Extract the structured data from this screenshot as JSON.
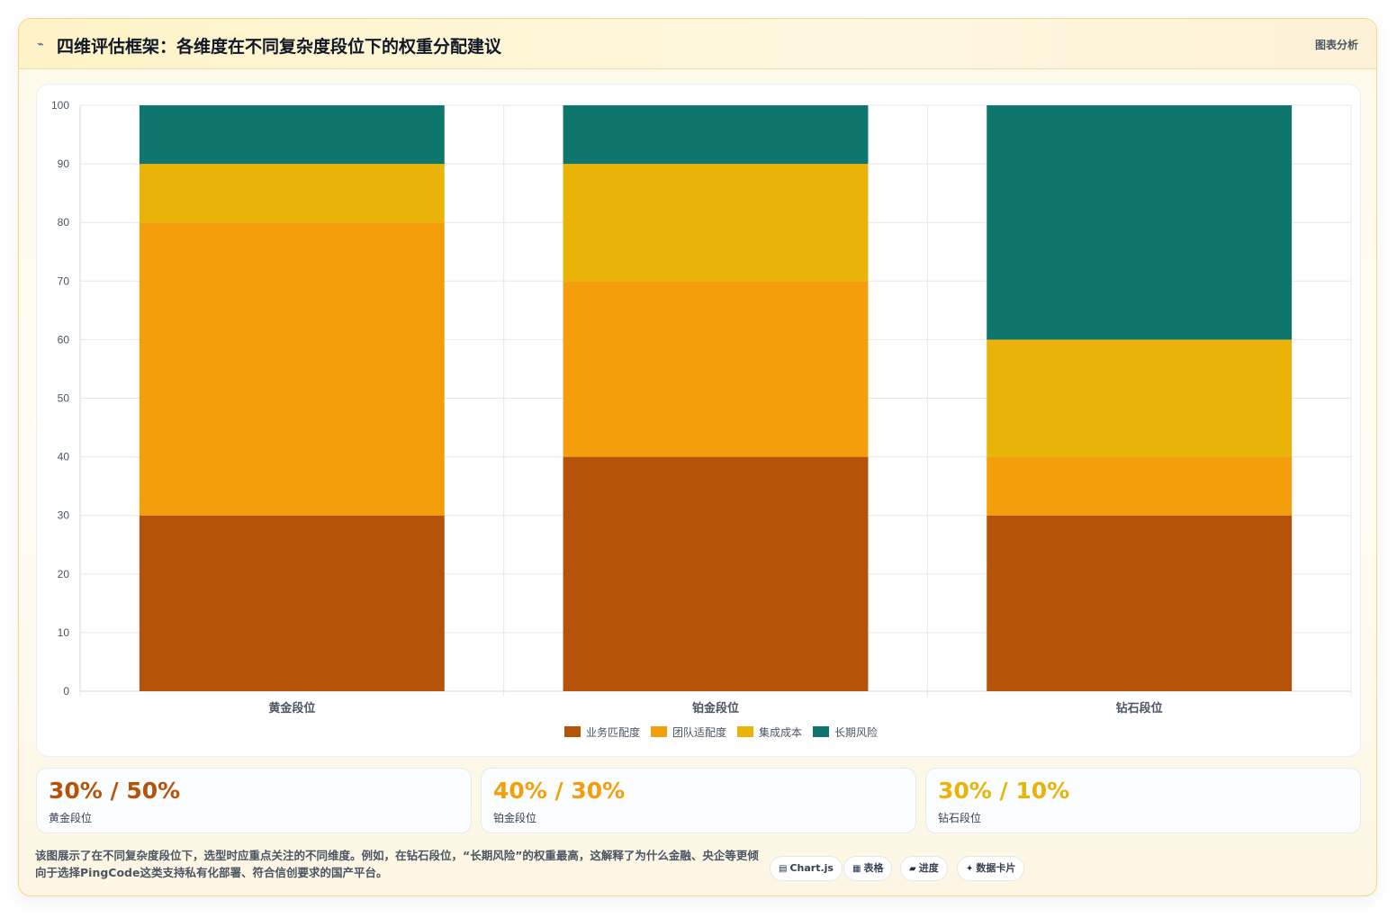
{
  "header": {
    "icon": "line-chart-icon",
    "title": "四维评估框架：各维度在不同复杂度段位下的权重分配建议",
    "badge": "图表分析"
  },
  "chart_data": {
    "type": "bar",
    "stacked": true,
    "categories": [
      "黄金段位",
      "铂金段位",
      "钻石段位"
    ],
    "series": [
      {
        "name": "业务匹配度",
        "values": [
          30,
          40,
          30
        ],
        "color": "#b45309"
      },
      {
        "name": "团队适配度",
        "values": [
          50,
          30,
          10
        ],
        "color": "#f59e0b"
      },
      {
        "name": "集成成本",
        "values": [
          10,
          20,
          20
        ],
        "color": "#eab308"
      },
      {
        "name": "长期风险",
        "values": [
          10,
          10,
          40
        ],
        "color": "#0f766e"
      }
    ],
    "ylim": [
      0,
      100
    ],
    "yticks": [
      0,
      10,
      20,
      30,
      40,
      50,
      60,
      70,
      80,
      90,
      100
    ],
    "grid": true,
    "legend": "bottom"
  },
  "kpis": [
    {
      "value": "30% / 50%",
      "label": "黄金段位",
      "color": "#b45309"
    },
    {
      "value": "40% / 30%",
      "label": "铂金段位",
      "color": "#f59e0b"
    },
    {
      "value": "30% / 10%",
      "label": "钻石段位",
      "color": "#eab308"
    }
  ],
  "footer": {
    "text": "该图展示了在不同复杂度段位下，选型时应重点关注的不同维度。例如，在钻石段位，“长期风险”的权重最高，这解释了为什么金融、央企等更倾向于选择PingCode这类支持私有化部署、符合信创要求的国产平台。"
  },
  "chips": [
    {
      "icon": "chart-icon",
      "glyph": "▤",
      "label": "Chart.js"
    },
    {
      "icon": "table-icon",
      "glyph": "▦",
      "label": "表格"
    },
    {
      "icon": "progress-icon",
      "glyph": "▰",
      "label": "进度"
    },
    {
      "icon": "sparkle-icon",
      "glyph": "✦",
      "label": "数据卡片"
    }
  ]
}
